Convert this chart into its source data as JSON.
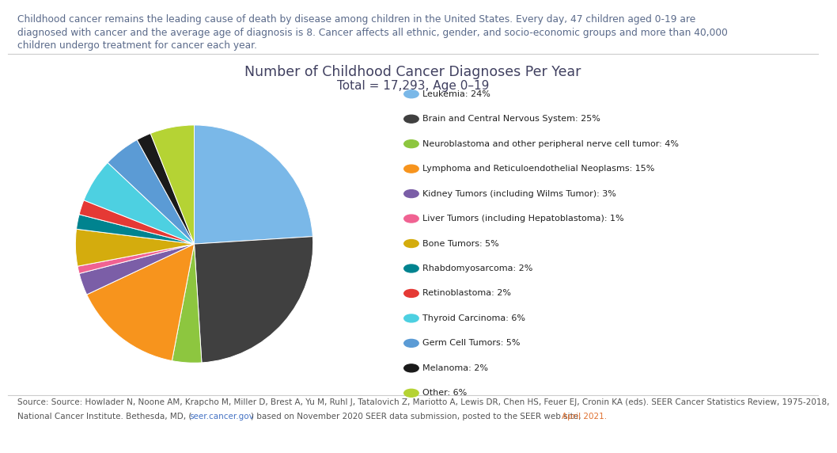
{
  "title_line1": "Number of Childhood Cancer Diagnoses Per Year",
  "title_line2": "Total = 17,293, Age 0–19",
  "labels": [
    "Leukemia: 24%",
    "Brain and Central Nervous System: 25%",
    "Neuroblastoma and other peripheral nerve cell tumor: 4%",
    "Lymphoma and Reticuloendothelial Neoplasms: 15%",
    "Kidney Tumors (including Wilms Tumor): 3%",
    "Liver Tumors (including Hepatoblastoma): 1%",
    "Bone Tumors: 5%",
    "Rhabdomyosarcoma: 2%",
    "Retinoblastoma: 2%",
    "Thyroid Carcinoma: 6%",
    "Germ Cell Tumors: 5%",
    "Melanoma: 2%",
    "Other: 6%"
  ],
  "values": [
    24,
    25,
    4,
    15,
    3,
    1,
    5,
    2,
    2,
    6,
    5,
    2,
    6
  ],
  "colors": [
    "#7ab8e8",
    "#404040",
    "#8dc63f",
    "#f7941d",
    "#7b5ea7",
    "#f06292",
    "#d4ac0d",
    "#00838f",
    "#e53935",
    "#4dd0e1",
    "#5b9bd5",
    "#1a1a1a",
    "#b5d334"
  ],
  "header_line1": "Childhood cancer remains the leading cause of death by disease among children in the United States. Every day, 47 children aged 0-19 are",
  "header_line2": "diagnosed with cancer and the average age of diagnosis is 8. Cancer affects all ethnic, gender, and socio-economic groups and more than 40,000",
  "header_line3": "children undergo treatment for cancer each year.",
  "source_line1": "Source: Source: Howlader N, Noone AM, Krapcho M, Miller D, Brest A, Yu M, Ruhl J, Tatalovich Z, Mariotto A, Lewis DR, Chen HS, Feuer EJ, Cronin KA (eds). SEER Cancer Statistics Review, 1975-2018,",
  "source_line2_pre": "National Cancer Institute. Bethesda, MD, (",
  "source_link": "seer.cancer.gov",
  "source_line2_post": ") based on November 2020 SEER data submission, posted to the SEER web site, ",
  "source_april": "April 2021.",
  "source_link_color": "#4472c4",
  "source_april_color": "#e07030",
  "header_color": "#5a6a8a",
  "title_color": "#404060",
  "source_color": "#555555"
}
